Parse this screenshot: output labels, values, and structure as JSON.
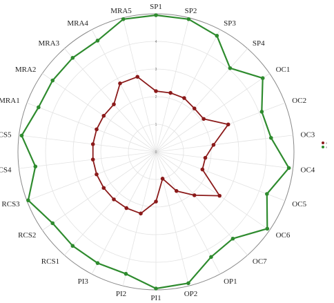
{
  "chart_data": {
    "type": "radar",
    "axes": [
      "SP1",
      "SP2",
      "SP3",
      "SP4",
      "OC1",
      "OC2",
      "OC3",
      "OC4",
      "OC5",
      "OC6",
      "OC7",
      "OP1",
      "OP2",
      "PI1",
      "PI2",
      "PI3",
      "RCS1",
      "RCS2",
      "RCS3",
      "RCS4",
      "RCS5",
      "MRA1",
      "MRA2",
      "MRA3",
      "MRA4",
      "MRA5"
    ],
    "rlim": [
      0,
      5
    ],
    "ring_labels": [
      "0",
      "1",
      "2",
      "3",
      "4"
    ],
    "grid": true,
    "legend_position": "right",
    "series": [
      {
        "name": "x",
        "color": "#8b1a1a",
        "values": [
          2.2,
          2.2,
          2.2,
          2.1,
          2.1,
          2.8,
          2.1,
          1.8,
          1.8,
          2.8,
          2.1,
          1.6,
          1.0,
          1.8,
          2.3,
          2.3,
          2.3,
          2.3,
          2.3,
          2.3,
          2.3,
          2.3,
          2.3,
          2.3,
          2.8,
          2.8
        ]
      },
      {
        "name": "x",
        "color": "#2e8b2e",
        "values": [
          4.95,
          4.95,
          4.75,
          4.05,
          4.7,
          4.1,
          4.2,
          4.85,
          4.3,
          4.9,
          4.2,
          4.3,
          4.9,
          4.95,
          4.55,
          4.55,
          4.55,
          4.55,
          4.95,
          4.4,
          4.9,
          4.55,
          4.55,
          4.55,
          4.55,
          4.95
        ]
      }
    ]
  }
}
